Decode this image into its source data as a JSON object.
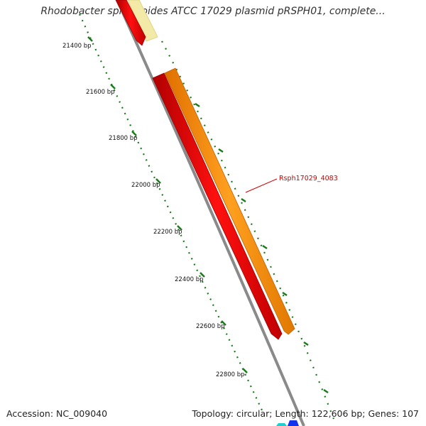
{
  "title": "Rhodobacter sphaeroides ATCC 17029 plasmid pRSPH01, complete...",
  "footer": {
    "accession": "Accession: NC_009040",
    "summary": "Topology: circular; Length: 122,606 bp; Genes: 107"
  },
  "ruler_labels": [
    "21400 bp",
    "21600 bp",
    "21800 bp",
    "22000 bp",
    "22200 bp",
    "22400 bp",
    "22600 bp",
    "22800 bp"
  ],
  "gene_label": "Rsph17029_4083",
  "colors": {
    "backbone": "#8a8a8a",
    "tick": "#1a7a1a",
    "gene_red": "#ee0000",
    "gene_orange": "#ff8c00",
    "gene_yellow": "#f3eaa8",
    "label_red": "#cc0000"
  }
}
